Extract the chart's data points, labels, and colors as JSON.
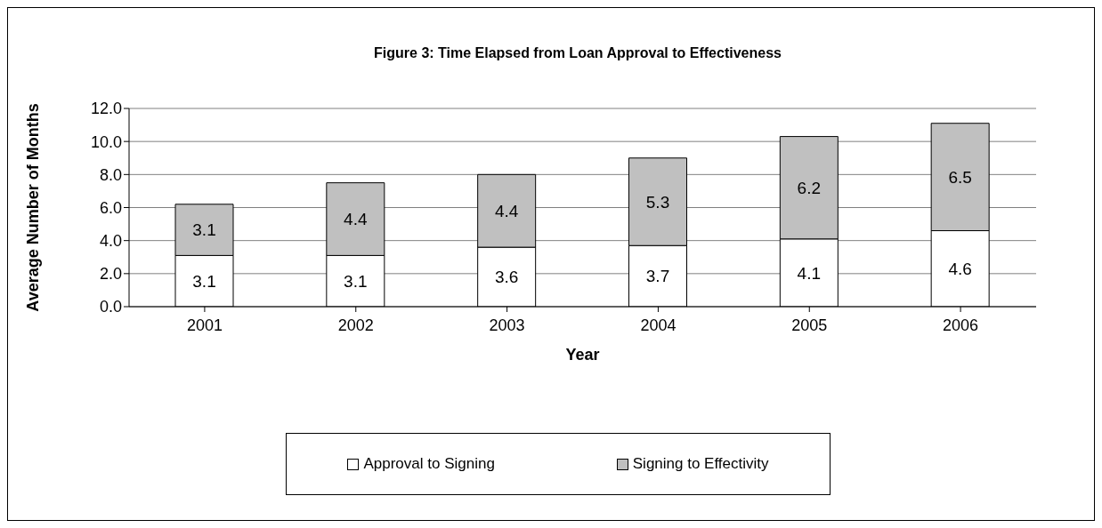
{
  "chart_data": {
    "type": "bar",
    "title": "Figure 3: Time Elapsed from Loan Approval to Effectiveness",
    "xlabel": "Year",
    "ylabel": "Average Number of Months",
    "categories": [
      "2001",
      "2002",
      "2003",
      "2004",
      "2005",
      "2006"
    ],
    "series": [
      {
        "name": "Approval to Signing",
        "color": "#ffffff",
        "values": [
          3.1,
          3.1,
          3.6,
          3.7,
          4.1,
          4.6
        ]
      },
      {
        "name": "Signing to Effectivity",
        "color": "#c0c0c0",
        "values": [
          3.1,
          4.4,
          4.4,
          5.3,
          6.2,
          6.5
        ]
      }
    ],
    "stacked": true,
    "data_labels": true,
    "ylim": [
      0,
      12
    ],
    "yticks": [
      {
        "value": 0,
        "label": "0.0"
      },
      {
        "value": 2,
        "label": "2.0"
      },
      {
        "value": 4,
        "label": "4.0"
      },
      {
        "value": 6,
        "label": "6.0"
      },
      {
        "value": 8,
        "label": "8.0"
      },
      {
        "value": 10,
        "label": "10.0"
      },
      {
        "value": 12,
        "label": "12.0"
      }
    ],
    "grid": "y",
    "legend": "bottom"
  }
}
